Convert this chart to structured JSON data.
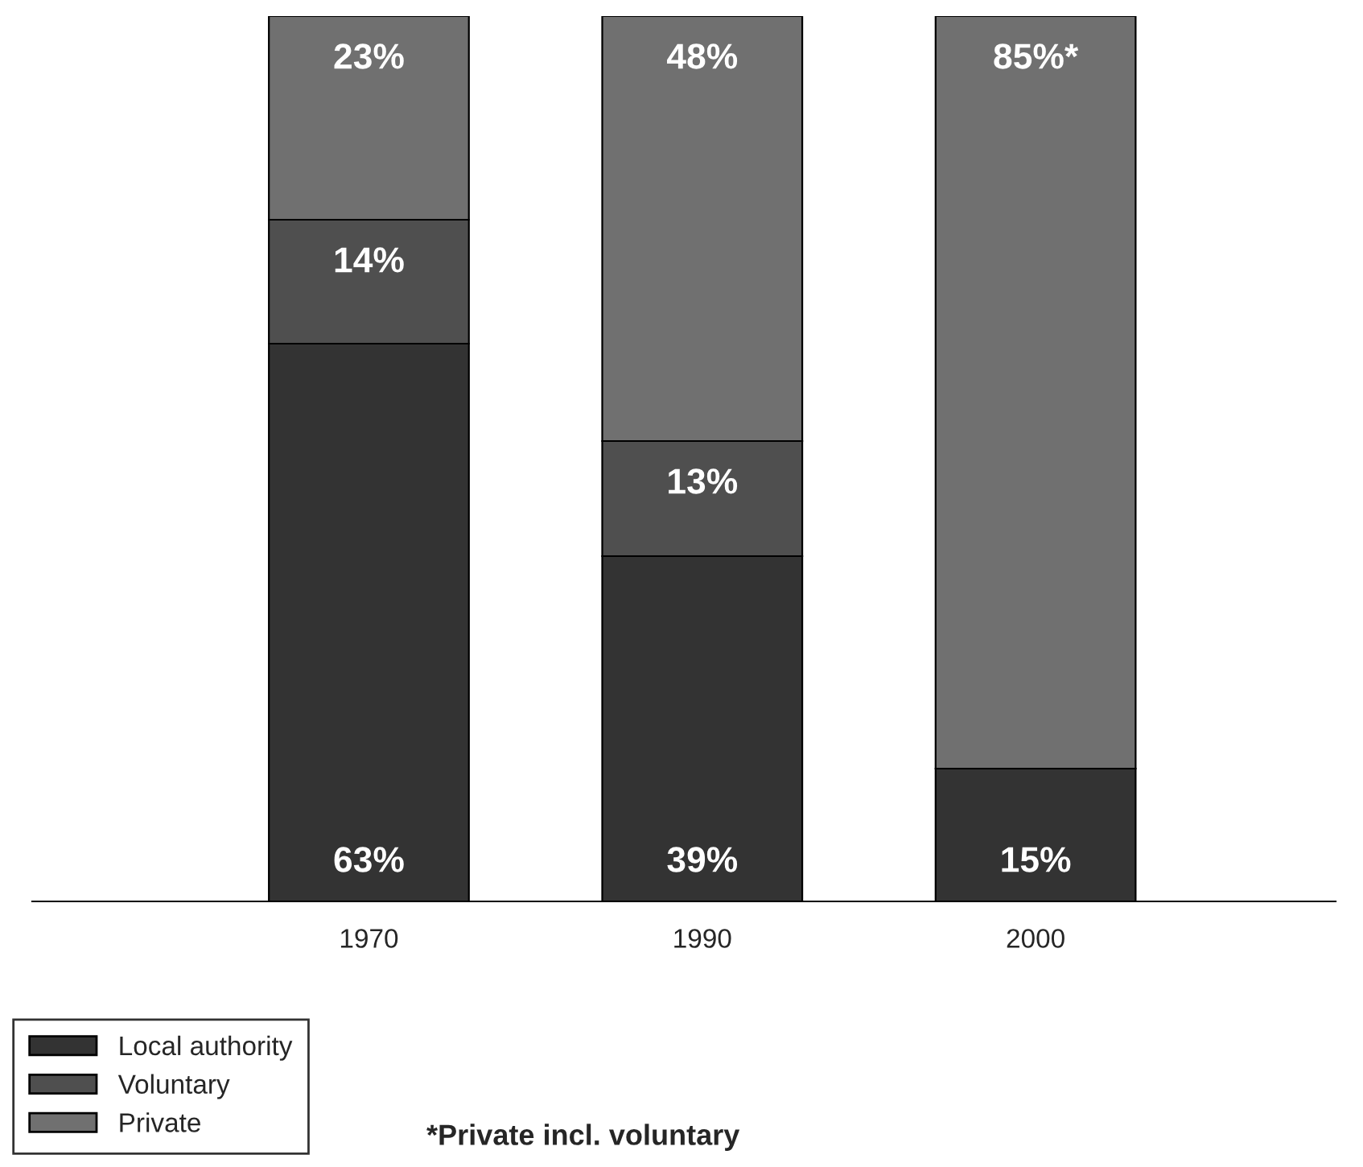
{
  "chart_data": {
    "type": "bar",
    "stacked": true,
    "categories": [
      "1970",
      "1990",
      "2000"
    ],
    "series": [
      {
        "name": "Local authority",
        "color": "#333333",
        "values": [
          63,
          39,
          15
        ],
        "value_labels": [
          "63%",
          "39%",
          "15%"
        ]
      },
      {
        "name": "Voluntary",
        "color": "#4f4f4f",
        "values": [
          14,
          13,
          null
        ],
        "value_labels": [
          "14%",
          "13%",
          null
        ]
      },
      {
        "name": "Private",
        "color": "#707070",
        "values": [
          23,
          48,
          85
        ],
        "value_labels": [
          "23%",
          "48%",
          "85%*"
        ]
      }
    ],
    "ylim": [
      0,
      100
    ],
    "tick_labels": "x",
    "legend": "bottom left",
    "annotations": [
      "*Private incl. voluntary"
    ]
  }
}
